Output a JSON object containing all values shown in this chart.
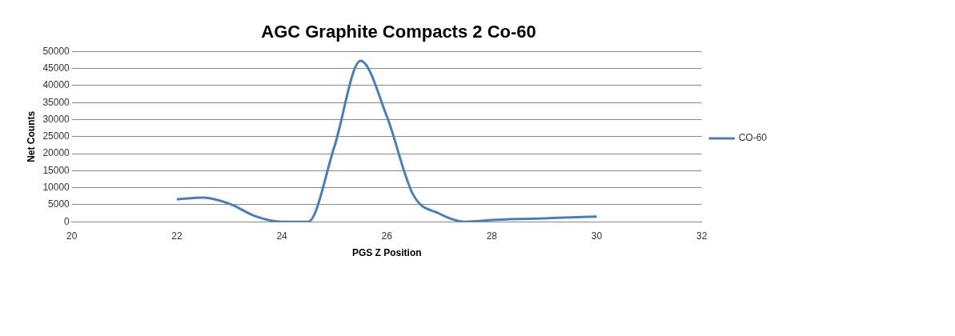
{
  "chart_data": {
    "type": "line",
    "title": "AGC Graphite Compacts 2 Co-60",
    "xlabel": "PGS Z Position",
    "ylabel": "Net Counts",
    "x": [
      22,
      22.5,
      23,
      23.5,
      24,
      24.5,
      25,
      25.5,
      26,
      26.5,
      27,
      27.5,
      28,
      28.5,
      29,
      29.5,
      30
    ],
    "series": [
      {
        "name": "CO-60",
        "color": "#4a7ebb",
        "values": [
          6600,
          7100,
          5300,
          1600,
          0,
          0,
          22000,
          47300,
          31000,
          8000,
          2400,
          0,
          500,
          800,
          1000,
          1300,
          1500
        ]
      }
    ],
    "xlim": [
      20,
      32
    ],
    "xticks": [
      20,
      22,
      24,
      26,
      28,
      30,
      32
    ],
    "ylim": [
      0,
      50000
    ],
    "yticks": [
      0,
      5000,
      10000,
      15000,
      20000,
      25000,
      30000,
      35000,
      40000,
      45000,
      50000
    ],
    "grid": "y",
    "legend": "right",
    "marker": "none",
    "line_style": "solid"
  }
}
